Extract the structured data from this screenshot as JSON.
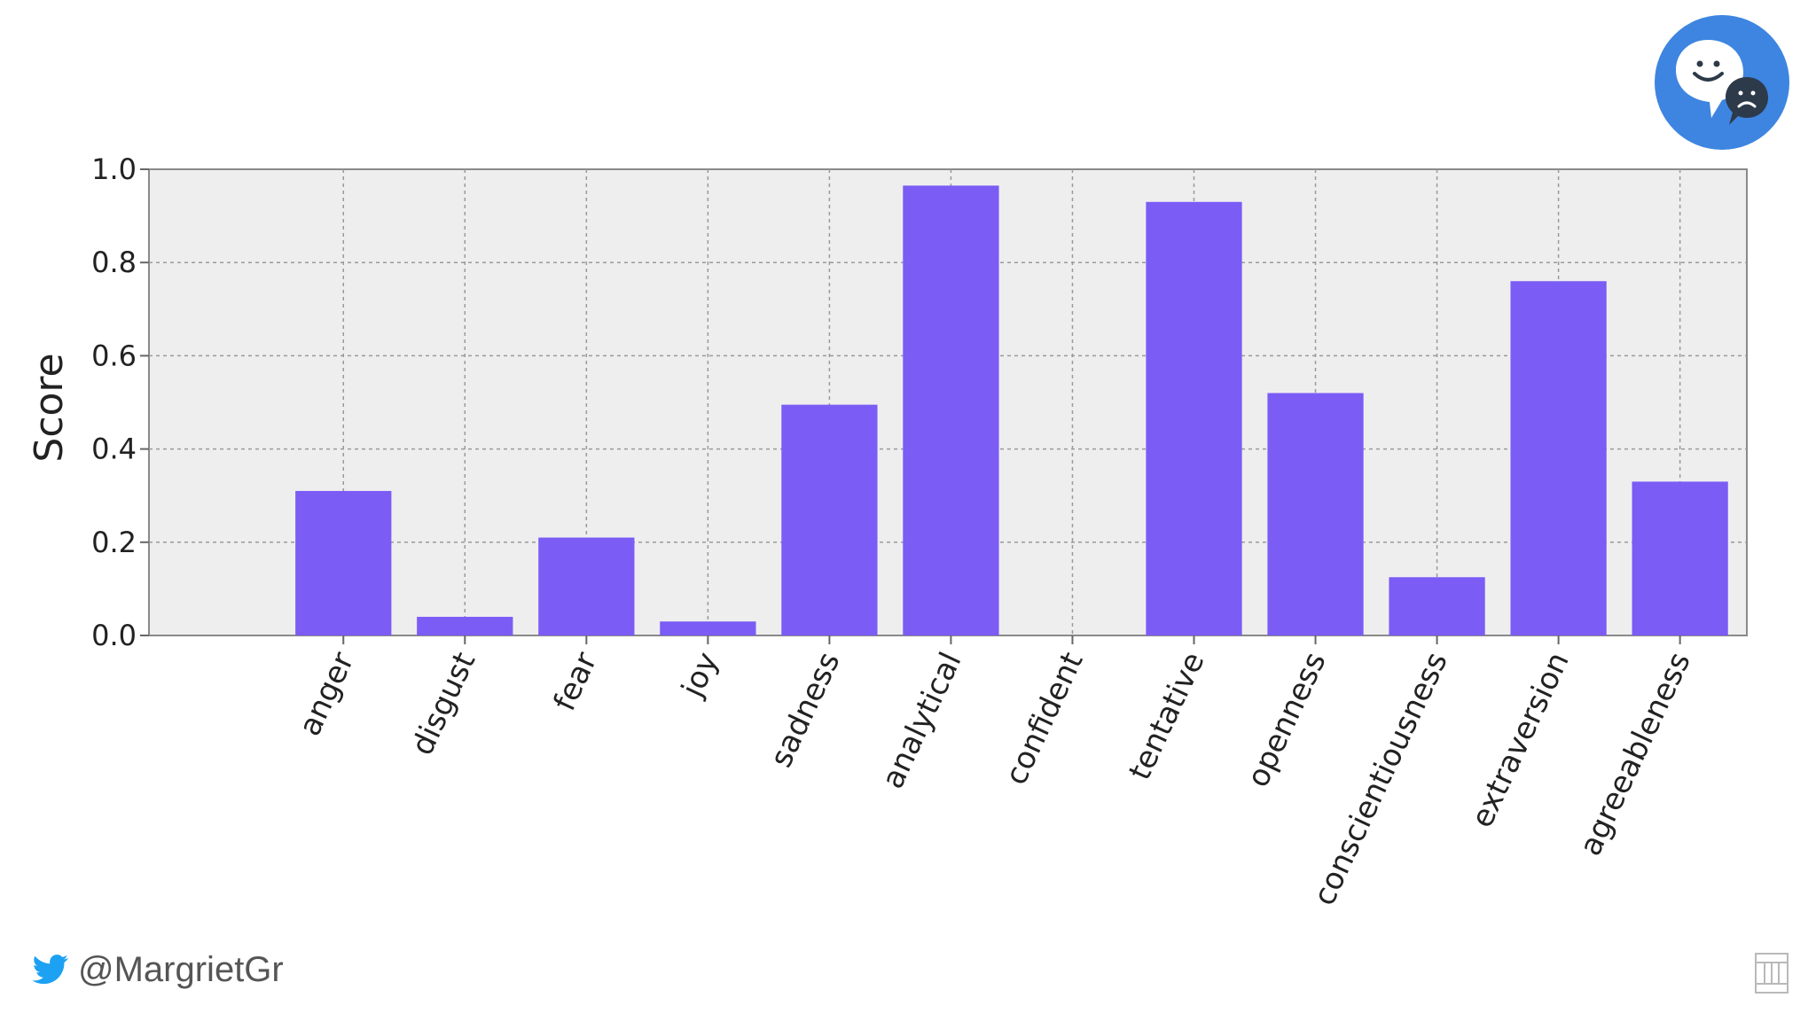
{
  "chart_data": {
    "type": "bar",
    "categories": [
      "anger",
      "disgust",
      "fear",
      "joy",
      "sadness",
      "analytical",
      "confident",
      "tentative",
      "openness",
      "conscientiousness",
      "extraversion",
      "agreeableness"
    ],
    "values": [
      0.31,
      0.04,
      0.21,
      0.03,
      0.495,
      0.965,
      0.0,
      0.93,
      0.52,
      0.125,
      0.76,
      0.33
    ],
    "ylabel": "Score",
    "xlabel": "",
    "ylim": [
      0,
      1.0
    ],
    "yticks": [
      "0.0",
      "0.2",
      "0.4",
      "0.6",
      "0.8",
      "1.0"
    ],
    "grid": true,
    "bar_color": "#7b5cf5"
  },
  "footer": {
    "handle": "@MargrietGr",
    "twitter_icon": "twitter-bird-icon",
    "twitter_color": "#1da1f2"
  },
  "logo": {
    "icon": "tone-analyzer-icon",
    "color": "#3d85e0"
  },
  "corner_mark": {
    "icon": "corner-logo-icon"
  }
}
